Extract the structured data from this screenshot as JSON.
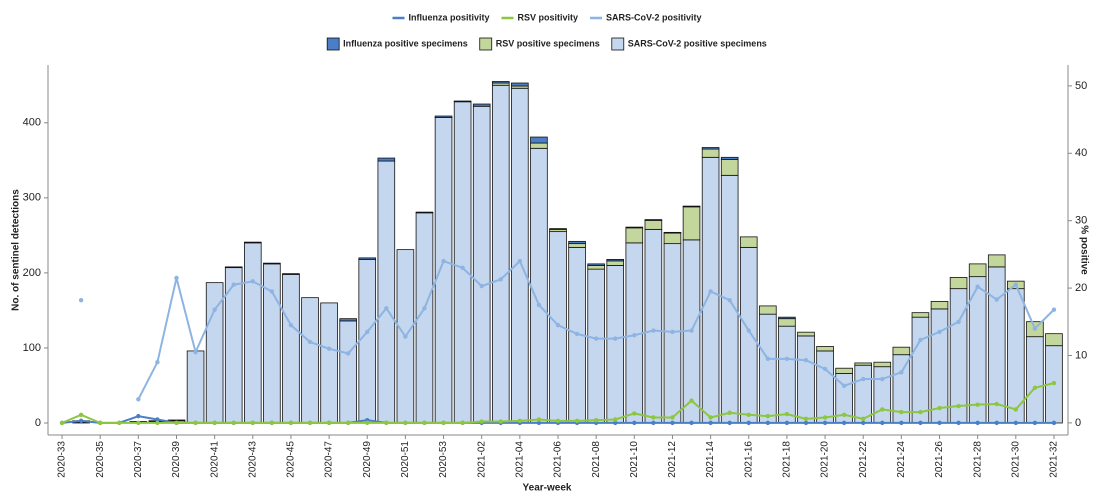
{
  "chart_data": {
    "type": "bar",
    "stacked": true,
    "x_label": "Year-week",
    "y_label": "No. of sentinel detections",
    "y2_label": "% positive",
    "categories": [
      "2020-33",
      null,
      "2020-35",
      null,
      "2020-37",
      null,
      "2020-39",
      null,
      "2020-41",
      null,
      "2020-43",
      null,
      "2020-45",
      null,
      "2020-47",
      null,
      "2020-49",
      null,
      "2020-51",
      null,
      "2020-53",
      null,
      "2021-02",
      null,
      "2021-04",
      null,
      "2021-06",
      null,
      "2021-08",
      null,
      "2021-10",
      null,
      "2021-12",
      null,
      "2021-14",
      null,
      "2021-16",
      null,
      "2021-18",
      null,
      "2021-20",
      null,
      "2021-22",
      null,
      "2021-24",
      null,
      "2021-26",
      null,
      "2021-28",
      null,
      "2021-30",
      null,
      "2021-32"
    ],
    "ylim": [
      -16,
      477
    ],
    "yticks": [
      0,
      100,
      200,
      300,
      400
    ],
    "y2lim": [
      -1.8,
      53.1
    ],
    "y2ticks": [
      0,
      10,
      20,
      30,
      40,
      50
    ],
    "grid": false,
    "series": [
      {
        "name": "Influenza positivity",
        "type": "line",
        "axis": "y2",
        "color": "#4a7ec7",
        "values": [
          0,
          0.3,
          0,
          0,
          1.0,
          0.5,
          0,
          0,
          0,
          0,
          0,
          0,
          0,
          0,
          0,
          0,
          0.4,
          0,
          0,
          0,
          0,
          0,
          0,
          0,
          0,
          0,
          0,
          0,
          0,
          0,
          0,
          0,
          0,
          0,
          0,
          0,
          0,
          0,
          0,
          0,
          0,
          0,
          0,
          0,
          0,
          0,
          0,
          0,
          0,
          0,
          0,
          0,
          0
        ]
      },
      {
        "name": "RSV positivity",
        "type": "line",
        "axis": "y2",
        "color": "#8dc63f",
        "values": [
          0,
          1.2,
          0,
          0,
          0,
          0,
          0,
          0,
          0,
          0,
          0,
          0,
          0,
          0,
          0,
          0,
          0,
          0,
          0,
          0,
          0,
          0,
          0.2,
          0.2,
          0.3,
          0.5,
          0.3,
          0.3,
          0.4,
          0.5,
          1.4,
          0.8,
          0.8,
          3.3,
          0.8,
          1.5,
          1.2,
          1.0,
          1.3,
          0.6,
          0.8,
          1.2,
          0.6,
          2.0,
          1.6,
          1.6,
          2.2,
          2.5,
          2.7,
          2.8,
          2.0,
          5.2,
          5.9
        ]
      },
      {
        "name": "SARS-CoV-2 positivity",
        "type": "line",
        "axis": "y2",
        "color": "#8db4e2",
        "values": [
          null,
          18.2,
          null,
          null,
          3.5,
          9.0,
          21.5,
          10.5,
          16.8,
          20.5,
          21.0,
          19.5,
          14.5,
          12.0,
          11.0,
          10.3,
          13.5,
          17.0,
          12.8,
          17.0,
          24.0,
          23.0,
          20.3,
          21.3,
          24.0,
          17.5,
          14.5,
          13.2,
          12.5,
          12.5,
          13.0,
          13.7,
          13.5,
          13.7,
          19.5,
          18.2,
          13.7,
          9.5,
          9.5,
          9.3,
          8.0,
          5.5,
          6.5,
          6.5,
          7.5,
          12.3,
          13.5,
          15.0,
          20.2,
          18.3,
          20.5,
          14.0,
          16.8
        ]
      },
      {
        "name": "Influenza positive specimens",
        "type": "bar",
        "color": "#4a7ec7",
        "values": [
          0,
          2,
          0,
          0,
          1,
          1,
          1,
          0,
          0,
          1,
          1,
          1,
          1,
          0,
          0,
          3,
          2,
          4,
          0,
          1,
          2,
          1,
          3,
          2,
          4,
          8,
          1,
          3,
          2,
          2,
          1,
          1,
          1,
          1,
          2,
          3,
          0,
          0,
          2,
          0,
          0,
          0,
          0,
          0,
          0,
          0,
          0,
          0,
          0,
          0,
          0,
          0,
          0
        ]
      },
      {
        "name": "RSV positive specimens",
        "type": "bar",
        "color": "#c3d69b",
        "values": [
          0,
          0,
          0,
          0,
          0,
          0,
          0,
          0,
          0,
          0,
          0,
          0,
          0,
          0,
          0,
          0,
          0,
          0,
          0,
          0,
          0,
          0,
          0,
          3,
          3,
          7,
          3,
          5,
          5,
          6,
          20,
          12,
          14,
          44,
          11,
          21,
          14,
          11,
          10,
          5,
          6,
          7,
          3,
          6,
          10,
          6,
          10,
          15,
          17,
          16,
          10,
          20,
          16
        ]
      },
      {
        "name": "SARS-CoV-2 positive specimens",
        "type": "bar",
        "color": "#c5d7ef",
        "values": [
          0,
          1,
          0,
          0,
          1,
          2,
          3,
          96,
          187,
          207,
          240,
          212,
          198,
          167,
          160,
          136,
          218,
          349,
          231,
          280,
          407,
          428,
          422,
          450,
          446,
          366,
          255,
          234,
          205,
          210,
          240,
          258,
          239,
          244,
          354,
          330,
          234,
          145,
          129,
          116,
          96,
          66,
          77,
          75,
          91,
          141,
          152,
          179,
          195,
          208,
          179,
          115,
          103
        ]
      }
    ]
  }
}
